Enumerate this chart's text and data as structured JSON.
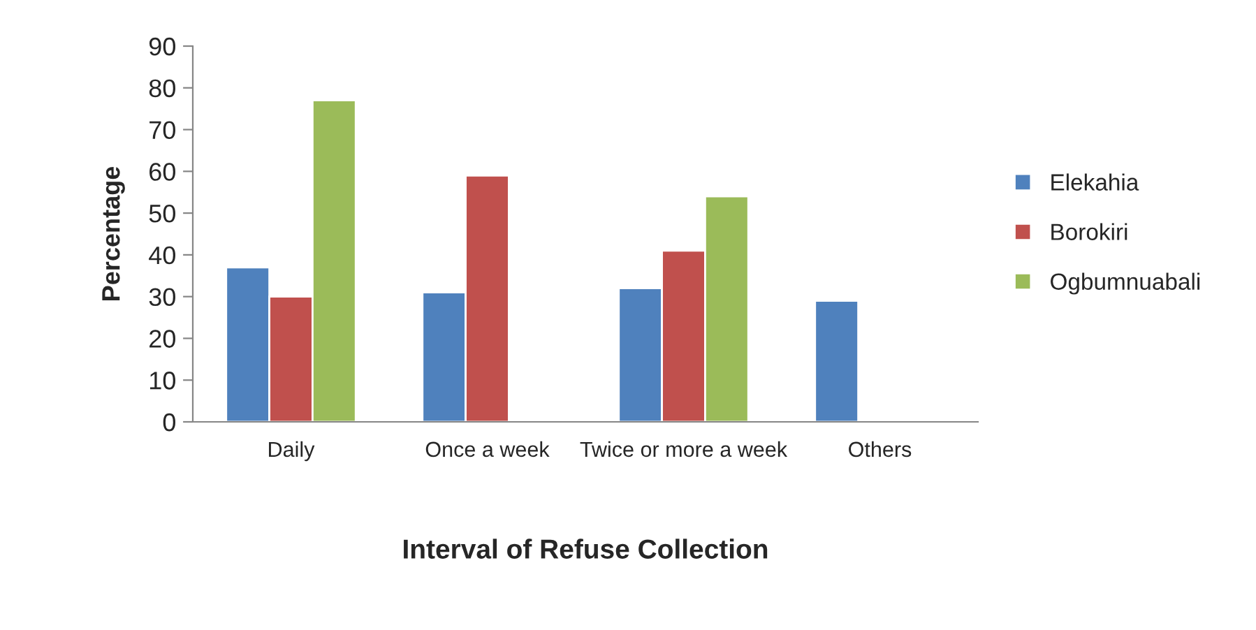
{
  "chart_data": {
    "type": "bar",
    "xlabel": "Interval of Refuse Collection",
    "ylabel": "Percentage",
    "categories": [
      "Daily",
      "Once a week",
      "Twice or more a week",
      "Others"
    ],
    "series": [
      {
        "name": "Elekahia",
        "color": "#4f81bd",
        "values": [
          37,
          31,
          32,
          29
        ]
      },
      {
        "name": "Borokiri",
        "color": "#c0504d",
        "values": [
          30,
          59,
          41,
          null
        ]
      },
      {
        "name": "Ogbumnuabali",
        "color": "#9bbb59",
        "values": [
          77,
          null,
          54,
          null
        ]
      }
    ],
    "ylim": [
      0,
      90
    ],
    "yticks": [
      0,
      10,
      20,
      30,
      40,
      50,
      60,
      70,
      80,
      90
    ],
    "grid": false,
    "legend": "right"
  }
}
